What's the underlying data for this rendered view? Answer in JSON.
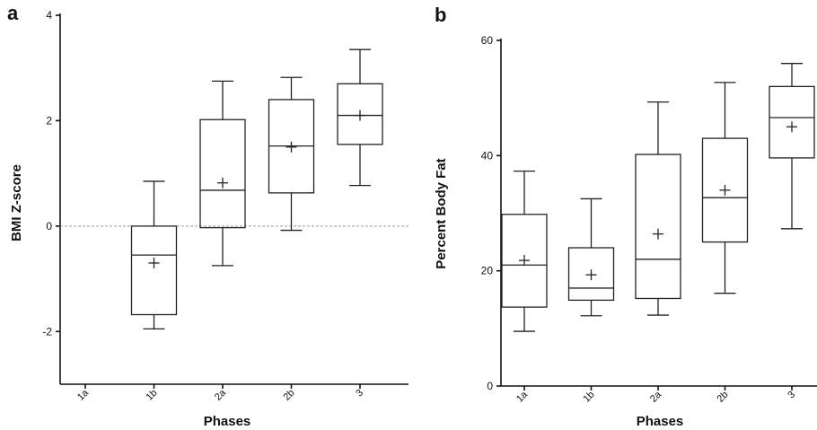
{
  "chart_data": [
    {
      "type": "box",
      "panel": "a",
      "xlabel": "Phases",
      "ylabel": "BMI Z-score",
      "ylim": [
        -3,
        4
      ],
      "yticks": [
        -2,
        0,
        2,
        4
      ],
      "ytick_labels": [
        "-2",
        "0",
        "2",
        "4"
      ],
      "reference_line": 0,
      "categories": [
        "1a",
        "1b",
        "2a",
        "2b",
        "3"
      ],
      "boxes": [
        null,
        {
          "min": -1.95,
          "q1": -1.68,
          "median": -0.55,
          "q3": 0.0,
          "max": 0.85,
          "mean": -0.7
        },
        {
          "min": -0.75,
          "q1": -0.03,
          "median": 0.68,
          "q3": 2.02,
          "max": 2.75,
          "mean": 0.82
        },
        {
          "min": -0.08,
          "q1": 0.63,
          "median": 1.52,
          "q3": 2.4,
          "max": 2.82,
          "mean": 1.5
        },
        {
          "min": 0.77,
          "q1": 1.55,
          "median": 2.1,
          "q3": 2.7,
          "max": 3.35,
          "mean": 2.1
        }
      ]
    },
    {
      "type": "box",
      "panel": "b",
      "xlabel": "Phases",
      "ylabel": "Percent Body Fat",
      "ylim": [
        0,
        60
      ],
      "yticks": [
        0,
        20,
        40,
        60
      ],
      "ytick_labels": [
        "0",
        "20",
        "40",
        "60"
      ],
      "categories": [
        "1a",
        "1b",
        "2a",
        "2b",
        "3"
      ],
      "boxes": [
        {
          "min": 9.5,
          "q1": 13.7,
          "median": 21.0,
          "q3": 29.8,
          "max": 37.3,
          "mean": 21.8
        },
        {
          "min": 12.2,
          "q1": 14.9,
          "median": 17.0,
          "q3": 24.0,
          "max": 32.5,
          "mean": 19.3
        },
        {
          "min": 12.3,
          "q1": 15.2,
          "median": 22.0,
          "q3": 40.2,
          "max": 49.3,
          "mean": 26.4
        },
        {
          "min": 16.1,
          "q1": 25.0,
          "median": 32.7,
          "q3": 43.0,
          "max": 52.7,
          "mean": 34.0
        },
        {
          "min": 27.3,
          "q1": 39.6,
          "median": 46.6,
          "q3": 52.0,
          "max": 56.0,
          "mean": 45.0
        }
      ]
    }
  ]
}
